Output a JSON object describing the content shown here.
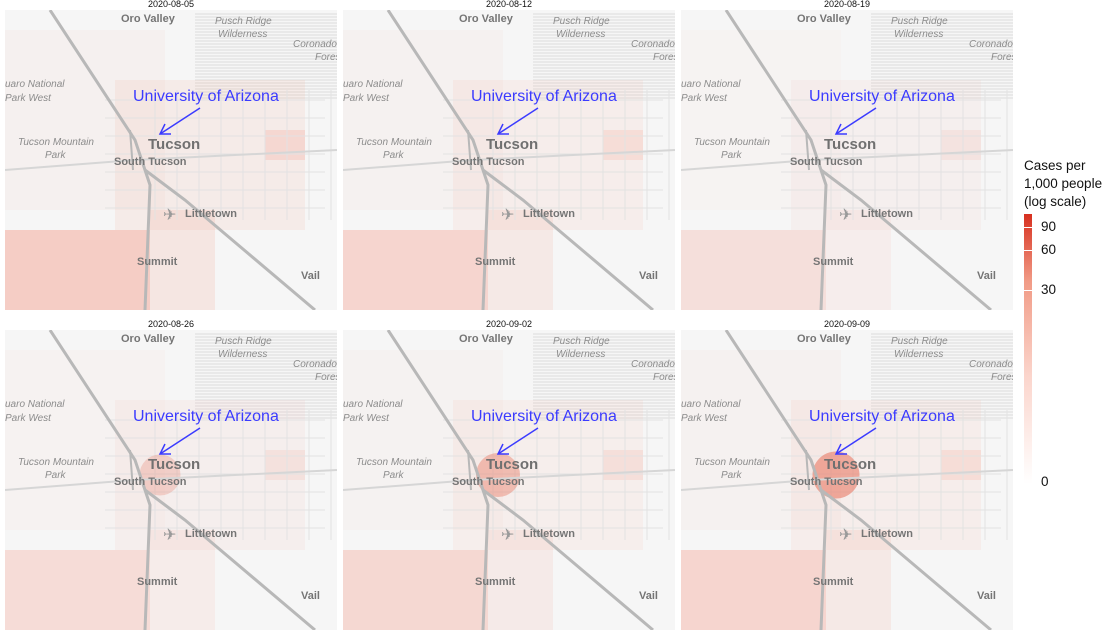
{
  "panels": [
    {
      "date": "2020-08-05",
      "intensity": 0.55
    },
    {
      "date": "2020-08-12",
      "intensity": 0.45
    },
    {
      "date": "2020-08-19",
      "intensity": 0.3
    },
    {
      "date": "2020-08-26",
      "intensity": 0.35
    },
    {
      "date": "2020-09-02",
      "intensity": 0.4
    },
    {
      "date": "2020-09-09",
      "intensity": 0.45
    }
  ],
  "map_labels": {
    "oro_valley": "Oro Valley",
    "pusch_ridge_1": "Pusch Ridge",
    "pusch_ridge_2": "Wilderness",
    "coronado_1": "Coronado N",
    "coronado_2": "Fores",
    "saguaro_1": "uaro National",
    "saguaro_2": "Park West",
    "tucson_mountain_1": "Tucson Mountain",
    "tucson_mountain_2": "Park",
    "tucson": "Tucson",
    "south_tucson": "South Tucson",
    "littletown": "Littletown",
    "summit": "Summit",
    "vail": "Vail"
  },
  "annotation": "University of Arizona",
  "legend": {
    "title_lines": [
      "Cases per",
      "1,000 people",
      "(log scale)"
    ],
    "ticks": [
      {
        "label": "90",
        "value": 90
      },
      {
        "label": "60",
        "value": 60
      },
      {
        "label": "30",
        "value": 30
      },
      {
        "label": "0",
        "value": 0
      }
    ],
    "color_low": "#ffffff",
    "color_high": "#d7301f"
  },
  "colors": {
    "road": "#b8b8b8",
    "annotation": "#3b3bff",
    "case_fill": "#f4a494"
  }
}
